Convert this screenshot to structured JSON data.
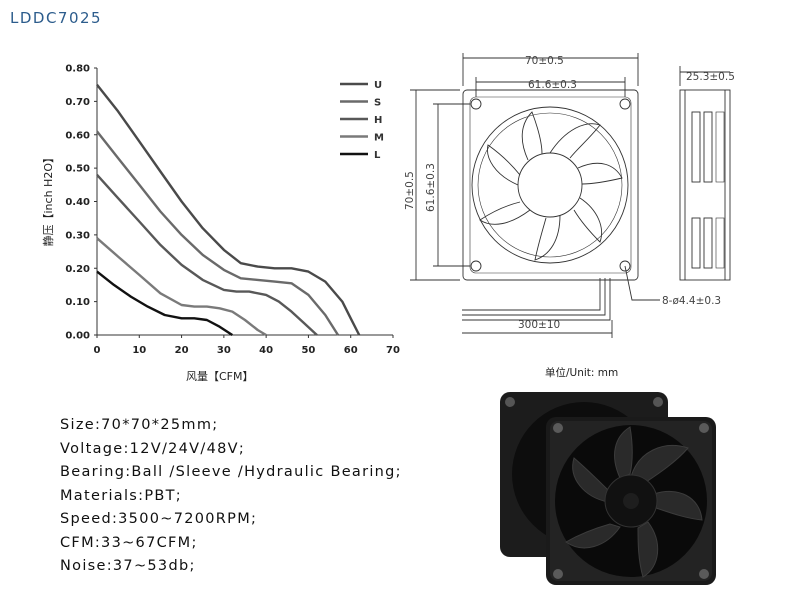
{
  "model": "LDDC7025",
  "chart_data": {
    "type": "line",
    "xlabel": "风量【CFM】",
    "ylabel": "静压【inch H2O】",
    "xlim": [
      0,
      70
    ],
    "ylim": [
      0,
      0.8
    ],
    "x_ticks": [
      "0",
      "10",
      "20",
      "30",
      "40",
      "50",
      "60",
      "70"
    ],
    "y_ticks": [
      "0.00",
      "0.10",
      "0.20",
      "0.30",
      "0.40",
      "0.50",
      "0.60",
      "0.70",
      "0.80"
    ],
    "legend_position": "top-right",
    "grid": false,
    "series": [
      {
        "name": "U",
        "color": "#4a4a4a",
        "x": [
          0,
          5,
          10,
          15,
          20,
          25,
          30,
          34,
          38,
          42,
          46,
          50,
          54,
          58,
          60,
          62
        ],
        "y": [
          0.75,
          0.67,
          0.58,
          0.49,
          0.4,
          0.32,
          0.255,
          0.215,
          0.205,
          0.2,
          0.2,
          0.19,
          0.16,
          0.1,
          0.05,
          0.0
        ]
      },
      {
        "name": "S",
        "color": "#6a6a6a",
        "x": [
          0,
          5,
          10,
          15,
          20,
          25,
          30,
          34,
          38,
          42,
          46,
          50,
          54,
          57
        ],
        "y": [
          0.61,
          0.53,
          0.45,
          0.37,
          0.3,
          0.24,
          0.195,
          0.17,
          0.165,
          0.16,
          0.155,
          0.12,
          0.06,
          0.0
        ]
      },
      {
        "name": "H",
        "color": "#585858",
        "x": [
          0,
          5,
          10,
          15,
          20,
          25,
          30,
          33,
          36,
          40,
          43,
          46,
          49,
          52
        ],
        "y": [
          0.48,
          0.41,
          0.34,
          0.27,
          0.21,
          0.165,
          0.135,
          0.13,
          0.13,
          0.12,
          0.1,
          0.07,
          0.035,
          0.0
        ]
      },
      {
        "name": "M",
        "color": "#7a7a7a",
        "x": [
          0,
          5,
          10,
          15,
          20,
          23,
          26,
          29,
          32,
          35,
          38,
          40
        ],
        "y": [
          0.29,
          0.235,
          0.18,
          0.125,
          0.09,
          0.085,
          0.085,
          0.08,
          0.07,
          0.045,
          0.015,
          0.0
        ]
      },
      {
        "name": "L",
        "color": "#111111",
        "x": [
          0,
          4,
          8,
          12,
          16,
          20,
          23,
          26,
          29,
          32
        ],
        "y": [
          0.19,
          0.15,
          0.115,
          0.085,
          0.06,
          0.05,
          0.05,
          0.045,
          0.025,
          0.0
        ]
      }
    ]
  },
  "drawing": {
    "outer_width": "70±0.5",
    "inner_width": "61.6±0.3",
    "outer_height": "70±0.5",
    "inner_height": "61.6±0.3",
    "depth": "25.3±0.5",
    "holes": "8-ø4.4±0.3",
    "cable": "300±10",
    "unit_note": "单位/Unit: mm"
  },
  "specs": [
    "Size:70*70*25mm;",
    "Voltage:12V/24V/48V;",
    "Bearing:Ball /Sleeve /Hydraulic Bearing;",
    "Materials:PBT;",
    "Speed:3500~7200RPM;",
    "CFM:33~67CFM;",
    "Noise:37~53db;"
  ],
  "colors": {
    "title": "#2c5c8c",
    "fan": "#151515"
  },
  "icons": {
    "fan_front": "fan-front-icon",
    "fan_side": "fan-side-icon",
    "photo": "fan-photo-icon"
  }
}
